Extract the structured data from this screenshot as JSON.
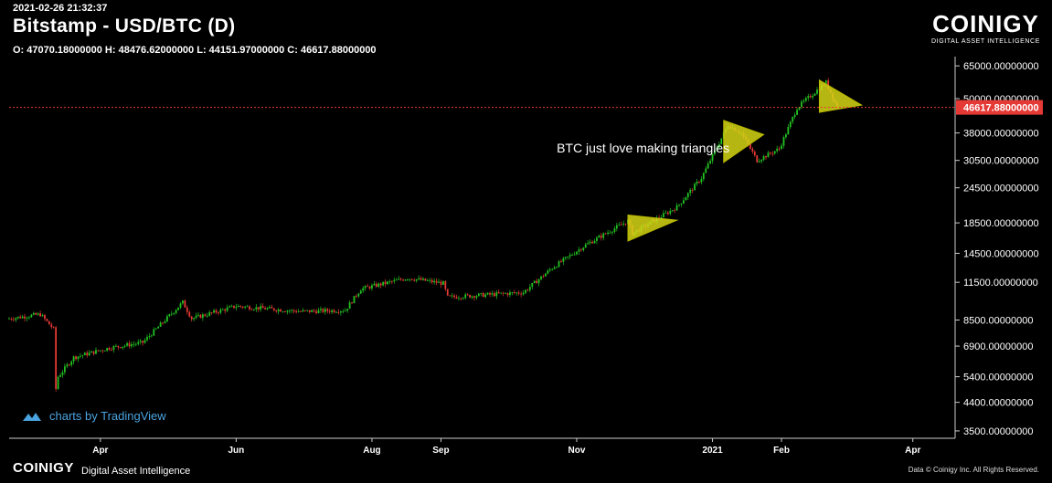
{
  "header": {
    "timestamp": "2021-02-26 21:32:37",
    "title": "Bitstamp - USD/BTC (D)",
    "ohlc": "O: 47070.18000000 H: 48476.62000000 L: 44151.97000000 C: 46617.88000000"
  },
  "brand": {
    "logo_word": "COINIGY",
    "logo_sub": "DIGITAL ASSET INTELLIGENCE",
    "bottom_logo": "COINIGY",
    "bottom_tag": "Digital Asset Intelligence",
    "copyright": "Data © Coinigy Inc.  All Rights Reserved.",
    "tradingview": "charts by TradingView"
  },
  "colors": {
    "up": "#22c322",
    "down": "#e53935",
    "price_line": "#e53935",
    "triangle": "#d6d615",
    "axis": "#cccccc"
  },
  "chart_data": {
    "type": "candlestick",
    "scale": "log",
    "ylim": [
      3300,
      70000
    ],
    "y_ticks": [
      "65000.00000000",
      "50000.00000000",
      "38000.00000000",
      "30500.00000000",
      "24500.00000000",
      "18500.00000000",
      "14500.00000000",
      "11500.00000000",
      "8500.00000000",
      "6900.00000000",
      "5400.00000000",
      "4400.00000000",
      "3500.00000000"
    ],
    "y_tick_values": [
      65000,
      50000,
      38000,
      30500,
      24500,
      18500,
      14500,
      11500,
      8500,
      6900,
      5400,
      4400,
      3500
    ],
    "x_labels": [
      "Apr",
      "Jun",
      "Aug",
      "Sep",
      "Nov",
      "2021",
      "Feb",
      "Apr"
    ],
    "x_label_dates": [
      "2020-04-01",
      "2020-06-01",
      "2020-08-01",
      "2020-09-01",
      "2020-11-01",
      "2021-01-01",
      "2021-02-01",
      "2021-04-01"
    ],
    "x_range": [
      "2020-02-20",
      "2021-04-20"
    ],
    "last_price_label": "46617.88000000",
    "last_price": 46617.88,
    "annotation": "BTC just love making triangles",
    "annotation_at": {
      "date": "2020-10-23",
      "price": 32500
    },
    "triangles": [
      {
        "name": "triangle-1",
        "points": [
          [
            "2020-11-24",
            19700
          ],
          [
            "2020-12-16",
            18900
          ],
          [
            "2020-11-24",
            16000
          ]
        ]
      },
      {
        "name": "triangle-2",
        "points": [
          [
            "2021-01-06",
            42000
          ],
          [
            "2021-01-24",
            37500
          ],
          [
            "2021-01-06",
            30000
          ]
        ]
      },
      {
        "name": "triangle-3",
        "points": [
          [
            "2021-02-18",
            58000
          ],
          [
            "2021-03-09",
            47500
          ],
          [
            "2021-02-18",
            44800
          ]
        ]
      }
    ],
    "anchors": [
      [
        "2020-02-20",
        8600
      ],
      [
        "2020-03-05",
        8900
      ],
      [
        "2020-03-11",
        7900
      ],
      [
        "2020-03-12",
        4900
      ],
      [
        "2020-03-13",
        5400
      ],
      [
        "2020-03-20",
        6300
      ],
      [
        "2020-04-05",
        6800
      ],
      [
        "2020-04-20",
        7100
      ],
      [
        "2020-05-02",
        8800
      ],
      [
        "2020-05-08",
        9800
      ],
      [
        "2020-05-12",
        8600
      ],
      [
        "2020-06-01",
        9500
      ],
      [
        "2020-06-30",
        9100
      ],
      [
        "2020-07-20",
        9200
      ],
      [
        "2020-07-27",
        10900
      ],
      [
        "2020-08-17",
        11900
      ],
      [
        "2020-09-02",
        11400
      ],
      [
        "2020-09-04",
        10200
      ],
      [
        "2020-10-08",
        10600
      ],
      [
        "2020-10-21",
        12900
      ],
      [
        "2020-11-05",
        15500
      ],
      [
        "2020-11-24",
        18800
      ],
      [
        "2020-11-26",
        17000
      ],
      [
        "2020-12-16",
        21000
      ],
      [
        "2020-12-27",
        26500
      ],
      [
        "2021-01-08",
        40500
      ],
      [
        "2021-01-14",
        38000
      ],
      [
        "2021-01-21",
        30500
      ],
      [
        "2021-01-31",
        33500
      ],
      [
        "2021-02-08",
        46500
      ],
      [
        "2021-02-21",
        57000
      ],
      [
        "2021-02-26",
        46617
      ]
    ]
  }
}
